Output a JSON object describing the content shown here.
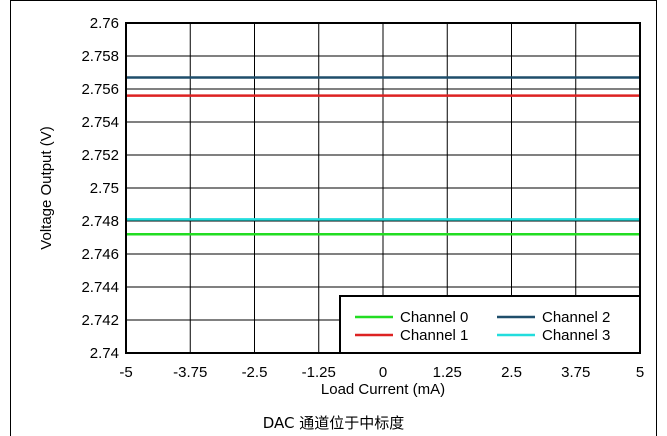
{
  "caption": "DAC 通道位于中标度",
  "chart_data": {
    "type": "line",
    "title": "",
    "xlabel": "Load Current (mA)",
    "ylabel": "Voltage Output (V)",
    "xlim": [
      -5,
      5
    ],
    "ylim": [
      2.74,
      2.76
    ],
    "x_ticks": [
      -5,
      -3.75,
      -2.5,
      -1.25,
      0,
      1.25,
      2.5,
      3.75,
      5
    ],
    "x_tick_labels": [
      "-5",
      "-3.75",
      "-2.5",
      "-1.25",
      "0",
      "1.25",
      "2.5",
      "3.75",
      "5"
    ],
    "y_ticks": [
      2.74,
      2.742,
      2.744,
      2.746,
      2.748,
      2.75,
      2.752,
      2.754,
      2.756,
      2.758,
      2.76
    ],
    "y_tick_labels": [
      "2.74",
      "2.742",
      "2.744",
      "2.746",
      "2.748",
      "2.75",
      "2.752",
      "2.754",
      "2.756",
      "2.758",
      "2.76"
    ],
    "grid": true,
    "legend_position": "bottom-right",
    "x": [
      -5,
      5
    ],
    "series": [
      {
        "name": "Channel 0",
        "color": "#22dd22",
        "values": [
          2.7472,
          2.7472
        ]
      },
      {
        "name": "Channel 1",
        "color": "#dd2222",
        "values": [
          2.7556,
          2.7556
        ]
      },
      {
        "name": "Channel 2",
        "color": "#1f4e6b",
        "values": [
          2.7567,
          2.7567
        ]
      },
      {
        "name": "Channel 3",
        "color": "#22dddd",
        "values": [
          2.7481,
          2.7481
        ]
      }
    ],
    "legend_order": [
      0,
      2,
      1,
      3
    ]
  }
}
